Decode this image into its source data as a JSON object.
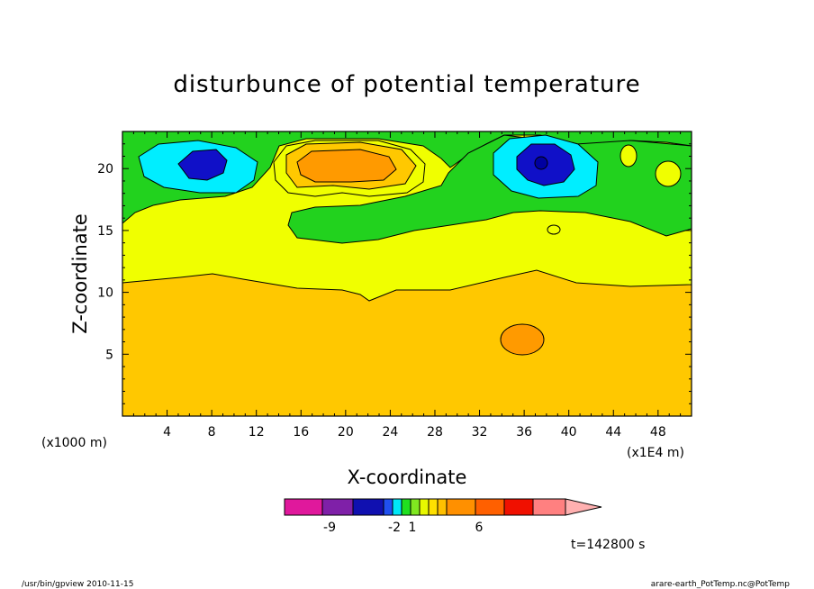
{
  "chart_data": {
    "type": "heatmap",
    "title": "disturbunce of potential temperature",
    "xlabel": "X-coordinate",
    "ylabel": "Z-coordinate",
    "x_unit_left": "(x1000 m)",
    "x_unit_right": "(x1E4 m)",
    "xlim": [
      0,
      51
    ],
    "ylim": [
      0,
      23
    ],
    "x_ticks": [
      4,
      8,
      12,
      16,
      20,
      24,
      28,
      32,
      36,
      40,
      44,
      48
    ],
    "y_ticks": [
      5,
      10,
      15,
      20
    ],
    "x_tick_labels": [
      "4",
      "8",
      "12",
      "16",
      "20",
      "24",
      "28",
      "32",
      "36",
      "40",
      "44",
      "48"
    ],
    "y_tick_labels": [
      "5",
      "10",
      "15",
      "20"
    ],
    "colorbar": {
      "colors": [
        "#e0189c",
        "#7f20a8",
        "#1010b0",
        "#2050f0",
        "#00e8f8",
        "#20e020",
        "#80e820",
        "#e8f800",
        "#ffe000",
        "#ffc000",
        "#ff9000",
        "#ff6000",
        "#f01000",
        "#ff8080",
        "#ffb0b0"
      ],
      "tick_labels": [
        "-9",
        "-2",
        "1",
        "6"
      ]
    },
    "fields": {
      "background": "#ffc800",
      "upper_band_yellow": "#f0ff00",
      "green": "#22d21e",
      "cyan": "#00eeff",
      "blue": "#1010c8",
      "dark_blue": "#0000a0",
      "orange": "#ff9a00",
      "light_orange": "#ffc800"
    }
  },
  "time_label": "t=142800 s",
  "footer_left": "/usr/bin/gpview   2010-11-15",
  "footer_right": "arare-earth_PotTemp.nc@PotTemp"
}
